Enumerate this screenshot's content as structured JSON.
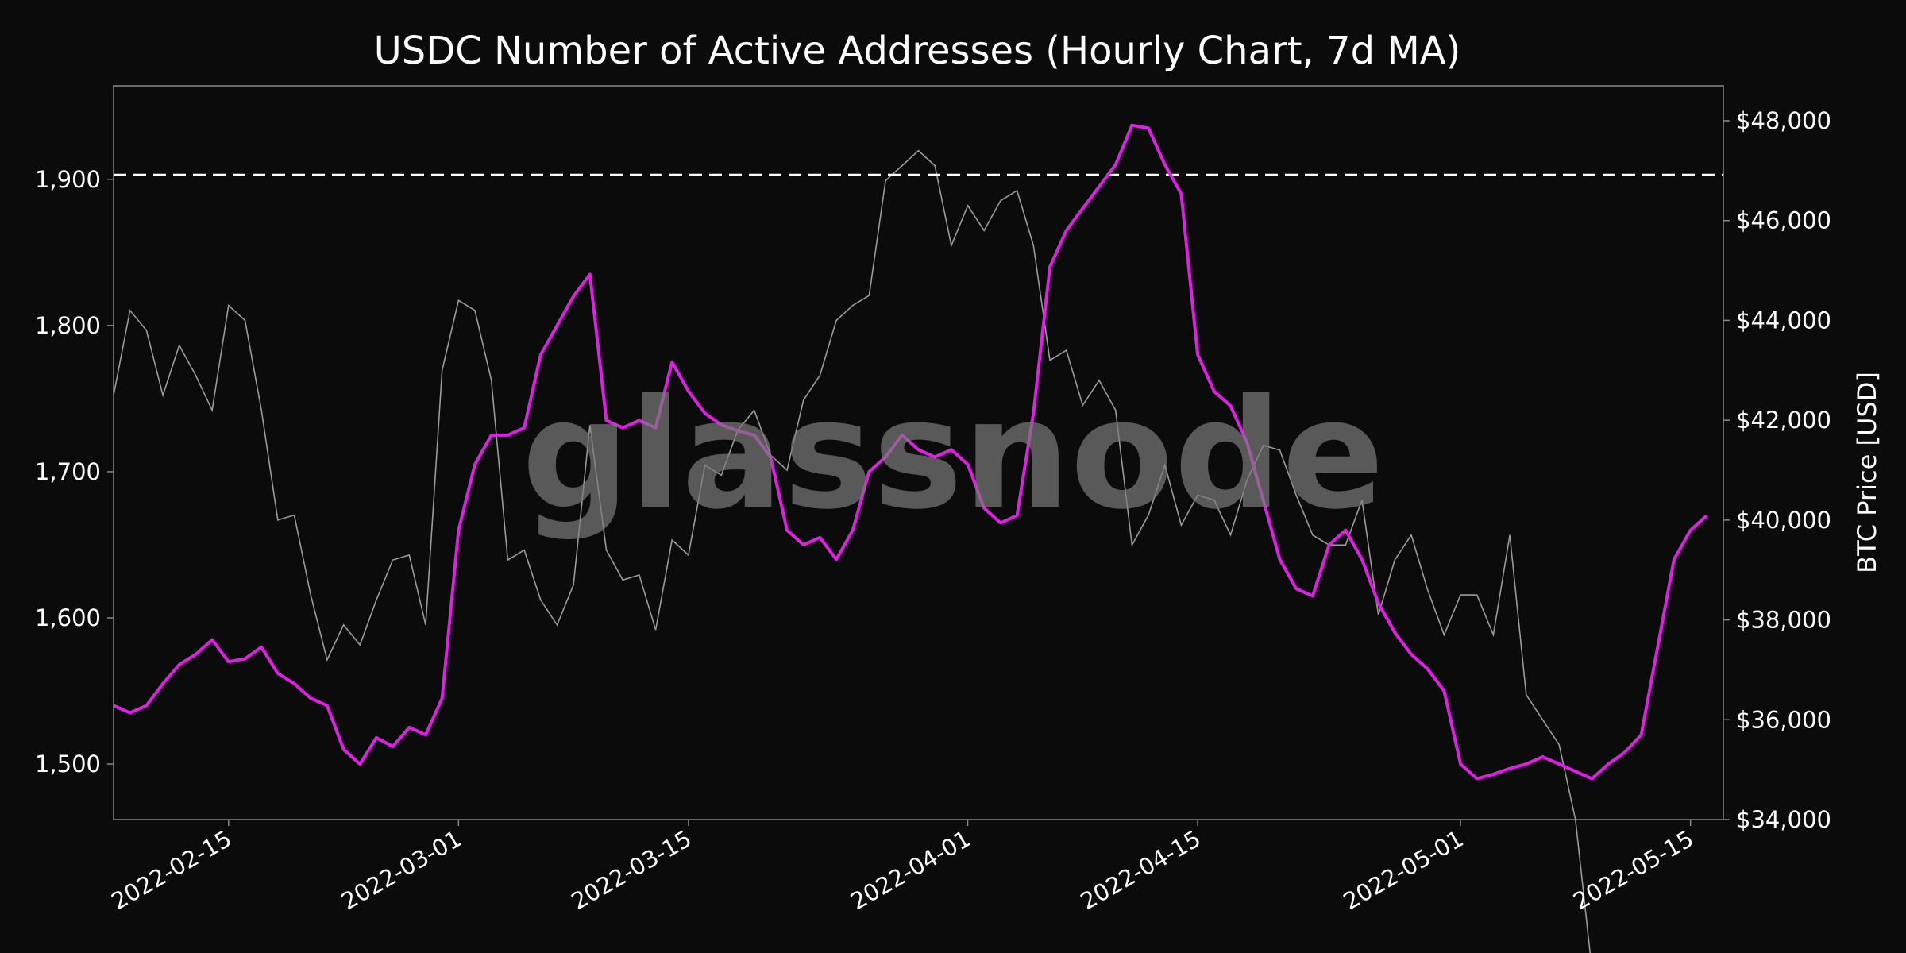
{
  "colors": {
    "background": "#0b0b0b",
    "plot_border": "#888888",
    "addresses_line": "#e01ee6",
    "price_line": "#9a9a9a",
    "threshold_line": "#ffffff",
    "text": "#ffffff",
    "watermark": "#7a7a7a"
  },
  "watermark": "glassnode",
  "chart_data": {
    "type": "line",
    "title": "USDC Number of Active Addresses (Hourly Chart, 7d MA)",
    "xlabel": "",
    "ylabel_left": "",
    "ylabel_right": "BTC Price [USD]",
    "grid": false,
    "legend": "none",
    "x_range": [
      "2022-02-08",
      "2022-05-17"
    ],
    "x_ticks": [
      "2022-02-15",
      "2022-03-01",
      "2022-03-15",
      "2022-04-01",
      "2022-04-15",
      "2022-05-01",
      "2022-05-15"
    ],
    "y_left_range": [
      1462,
      1964
    ],
    "y_left_ticks": [
      1500,
      1600,
      1700,
      1800,
      1900
    ],
    "y_left_tick_labels": [
      "1,500",
      "1,600",
      "1,700",
      "1,800",
      "1,900"
    ],
    "y_right_range": [
      34000,
      48700
    ],
    "y_right_ticks": [
      34000,
      36000,
      38000,
      40000,
      42000,
      44000,
      46000,
      48000
    ],
    "y_right_tick_labels": [
      "$34,000",
      "$36,000",
      "$38,000",
      "$40,000",
      "$42,000",
      "$44,000",
      "$46,000",
      "$48,000"
    ],
    "threshold": {
      "axis": "left",
      "value": 1903,
      "style": "dashed"
    },
    "series": [
      {
        "axis": "left",
        "style": "solid-magenta",
        "points": [
          [
            "2022-02-08",
            1540
          ],
          [
            "2022-02-09",
            1535
          ],
          [
            "2022-02-10",
            1540
          ],
          [
            "2022-02-11",
            1555
          ],
          [
            "2022-02-12",
            1568
          ],
          [
            "2022-02-13",
            1575
          ],
          [
            "2022-02-14",
            1585
          ],
          [
            "2022-02-15",
            1570
          ],
          [
            "2022-02-16",
            1572
          ],
          [
            "2022-02-17",
            1580
          ],
          [
            "2022-02-18",
            1562
          ],
          [
            "2022-02-19",
            1555
          ],
          [
            "2022-02-20",
            1545
          ],
          [
            "2022-02-21",
            1540
          ],
          [
            "2022-02-22",
            1510
          ],
          [
            "2022-02-23",
            1500
          ],
          [
            "2022-02-24",
            1518
          ],
          [
            "2022-02-25",
            1512
          ],
          [
            "2022-02-26",
            1525
          ],
          [
            "2022-02-27",
            1520
          ],
          [
            "2022-02-28",
            1545
          ],
          [
            "2022-03-01",
            1660
          ],
          [
            "2022-03-02",
            1705
          ],
          [
            "2022-03-03",
            1725
          ],
          [
            "2022-03-04",
            1725
          ],
          [
            "2022-03-05",
            1730
          ],
          [
            "2022-03-06",
            1780
          ],
          [
            "2022-03-07",
            1800
          ],
          [
            "2022-03-08",
            1820
          ],
          [
            "2022-03-09",
            1835
          ],
          [
            "2022-03-10",
            1735
          ],
          [
            "2022-03-11",
            1730
          ],
          [
            "2022-03-12",
            1735
          ],
          [
            "2022-03-13",
            1730
          ],
          [
            "2022-03-14",
            1775
          ],
          [
            "2022-03-15",
            1755
          ],
          [
            "2022-03-16",
            1740
          ],
          [
            "2022-03-17",
            1732
          ],
          [
            "2022-03-18",
            1728
          ],
          [
            "2022-03-19",
            1725
          ],
          [
            "2022-03-20",
            1710
          ],
          [
            "2022-03-21",
            1660
          ],
          [
            "2022-03-22",
            1650
          ],
          [
            "2022-03-23",
            1655
          ],
          [
            "2022-03-24",
            1640
          ],
          [
            "2022-03-25",
            1660
          ],
          [
            "2022-03-26",
            1700
          ],
          [
            "2022-03-27",
            1710
          ],
          [
            "2022-03-28",
            1725
          ],
          [
            "2022-03-29",
            1715
          ],
          [
            "2022-03-30",
            1710
          ],
          [
            "2022-03-31",
            1715
          ],
          [
            "2022-04-01",
            1705
          ],
          [
            "2022-04-02",
            1675
          ],
          [
            "2022-04-03",
            1665
          ],
          [
            "2022-04-04",
            1670
          ],
          [
            "2022-04-05",
            1740
          ],
          [
            "2022-04-06",
            1840
          ],
          [
            "2022-04-07",
            1865
          ],
          [
            "2022-04-08",
            1880
          ],
          [
            "2022-04-09",
            1895
          ],
          [
            "2022-04-10",
            1910
          ],
          [
            "2022-04-11",
            1937
          ],
          [
            "2022-04-12",
            1935
          ],
          [
            "2022-04-13",
            1910
          ],
          [
            "2022-04-14",
            1890
          ],
          [
            "2022-04-15",
            1780
          ],
          [
            "2022-04-16",
            1755
          ],
          [
            "2022-04-17",
            1745
          ],
          [
            "2022-04-18",
            1720
          ],
          [
            "2022-04-19",
            1680
          ],
          [
            "2022-04-20",
            1640
          ],
          [
            "2022-04-21",
            1620
          ],
          [
            "2022-04-22",
            1615
          ],
          [
            "2022-04-23",
            1650
          ],
          [
            "2022-04-24",
            1660
          ],
          [
            "2022-04-25",
            1640
          ],
          [
            "2022-04-26",
            1610
          ],
          [
            "2022-04-27",
            1590
          ],
          [
            "2022-04-28",
            1575
          ],
          [
            "2022-04-29",
            1565
          ],
          [
            "2022-04-30",
            1550
          ],
          [
            "2022-05-01",
            1500
          ],
          [
            "2022-05-02",
            1490
          ],
          [
            "2022-05-03",
            1493
          ],
          [
            "2022-05-04",
            1497
          ],
          [
            "2022-05-05",
            1500
          ],
          [
            "2022-05-06",
            1505
          ],
          [
            "2022-05-07",
            1500
          ],
          [
            "2022-05-08",
            1495
          ],
          [
            "2022-05-09",
            1490
          ],
          [
            "2022-05-10",
            1500
          ],
          [
            "2022-05-11",
            1508
          ],
          [
            "2022-05-12",
            1520
          ],
          [
            "2022-05-13",
            1580
          ],
          [
            "2022-05-14",
            1640
          ],
          [
            "2022-05-15",
            1660
          ],
          [
            "2022-05-16",
            1670
          ]
        ]
      },
      {
        "axis": "right",
        "style": "thin-gray",
        "points": [
          [
            "2022-02-08",
            42500
          ],
          [
            "2022-02-09",
            44200
          ],
          [
            "2022-02-10",
            43800
          ],
          [
            "2022-02-11",
            42500
          ],
          [
            "2022-02-12",
            43500
          ],
          [
            "2022-02-13",
            42900
          ],
          [
            "2022-02-14",
            42200
          ],
          [
            "2022-02-15",
            44300
          ],
          [
            "2022-02-16",
            44000
          ],
          [
            "2022-02-17",
            42200
          ],
          [
            "2022-02-18",
            40000
          ],
          [
            "2022-02-19",
            40100
          ],
          [
            "2022-02-20",
            38500
          ],
          [
            "2022-02-21",
            37200
          ],
          [
            "2022-02-22",
            37900
          ],
          [
            "2022-02-23",
            37500
          ],
          [
            "2022-02-24",
            38400
          ],
          [
            "2022-02-25",
            39200
          ],
          [
            "2022-02-26",
            39300
          ],
          [
            "2022-02-27",
            37900
          ],
          [
            "2022-02-28",
            43000
          ],
          [
            "2022-03-01",
            44400
          ],
          [
            "2022-03-02",
            44200
          ],
          [
            "2022-03-03",
            42800
          ],
          [
            "2022-03-04",
            39200
          ],
          [
            "2022-03-05",
            39400
          ],
          [
            "2022-03-06",
            38400
          ],
          [
            "2022-03-07",
            37900
          ],
          [
            "2022-03-08",
            38700
          ],
          [
            "2022-03-09",
            41900
          ],
          [
            "2022-03-10",
            39400
          ],
          [
            "2022-03-11",
            38800
          ],
          [
            "2022-03-12",
            38900
          ],
          [
            "2022-03-13",
            37800
          ],
          [
            "2022-03-14",
            39600
          ],
          [
            "2022-03-15",
            39300
          ],
          [
            "2022-03-16",
            41100
          ],
          [
            "2022-03-17",
            40900
          ],
          [
            "2022-03-18",
            41800
          ],
          [
            "2022-03-19",
            42200
          ],
          [
            "2022-03-20",
            41300
          ],
          [
            "2022-03-21",
            41000
          ],
          [
            "2022-03-22",
            42400
          ],
          [
            "2022-03-23",
            42900
          ],
          [
            "2022-03-24",
            44000
          ],
          [
            "2022-03-25",
            44300
          ],
          [
            "2022-03-26",
            44500
          ],
          [
            "2022-03-27",
            46800
          ],
          [
            "2022-03-28",
            47100
          ],
          [
            "2022-03-29",
            47400
          ],
          [
            "2022-03-30",
            47100
          ],
          [
            "2022-03-31",
            45500
          ],
          [
            "2022-04-01",
            46300
          ],
          [
            "2022-04-02",
            45800
          ],
          [
            "2022-04-03",
            46400
          ],
          [
            "2022-04-04",
            46600
          ],
          [
            "2022-04-05",
            45500
          ],
          [
            "2022-04-06",
            43200
          ],
          [
            "2022-04-07",
            43400
          ],
          [
            "2022-04-08",
            42300
          ],
          [
            "2022-04-09",
            42800
          ],
          [
            "2022-04-10",
            42200
          ],
          [
            "2022-04-11",
            39500
          ],
          [
            "2022-04-12",
            40100
          ],
          [
            "2022-04-13",
            41100
          ],
          [
            "2022-04-14",
            39900
          ],
          [
            "2022-04-15",
            40500
          ],
          [
            "2022-04-16",
            40400
          ],
          [
            "2022-04-17",
            39700
          ],
          [
            "2022-04-18",
            40800
          ],
          [
            "2022-04-19",
            41500
          ],
          [
            "2022-04-20",
            41400
          ],
          [
            "2022-04-21",
            40500
          ],
          [
            "2022-04-22",
            39700
          ],
          [
            "2022-04-23",
            39500
          ],
          [
            "2022-04-24",
            39500
          ],
          [
            "2022-04-25",
            40400
          ],
          [
            "2022-04-26",
            38100
          ],
          [
            "2022-04-27",
            39200
          ],
          [
            "2022-04-28",
            39700
          ],
          [
            "2022-04-29",
            38600
          ],
          [
            "2022-04-30",
            37700
          ],
          [
            "2022-05-01",
            38500
          ],
          [
            "2022-05-02",
            38500
          ],
          [
            "2022-05-03",
            37700
          ],
          [
            "2022-05-04",
            39700
          ],
          [
            "2022-05-05",
            36500
          ],
          [
            "2022-05-06",
            36000
          ],
          [
            "2022-05-07",
            35500
          ],
          [
            "2022-05-08",
            34000
          ],
          [
            "2022-05-09",
            31000
          ]
        ]
      }
    ]
  }
}
